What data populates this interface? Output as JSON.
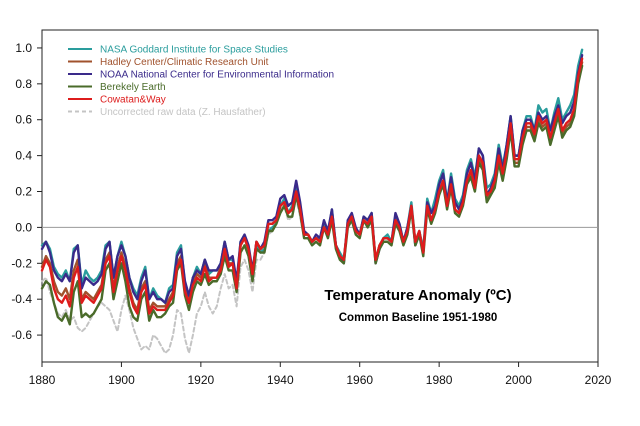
{
  "chart_data": {
    "type": "line",
    "title": "Temperature Anomaly (ºC)",
    "subtitle": "Common Baseline 1951-1980",
    "xlabel": "",
    "ylabel": "",
    "xlim": [
      1880,
      2020
    ],
    "ylim": [
      -0.75,
      1.1
    ],
    "x_ticks": [
      1880,
      1900,
      1920,
      1940,
      1960,
      1980,
      2000,
      2020
    ],
    "y_ticks": [
      -0.6,
      -0.4,
      -0.2,
      0.0,
      0.2,
      0.4,
      0.6,
      0.8,
      1.0
    ],
    "y_tick_labels": [
      "-0.6",
      "-0.4",
      "-0.2",
      "0.0",
      "0.2",
      "0.4",
      "0.6",
      "0.8",
      "1.0"
    ],
    "grid": false,
    "reference_line": 0.0,
    "legend_position": "top-left",
    "series": [
      {
        "name": "NASA Goddard Institute for Space Studies",
        "color": "#2a9d9d",
        "style": "solid",
        "start_year": 1880,
        "values": [
          -0.1,
          -0.08,
          -0.12,
          -0.22,
          -0.26,
          -0.28,
          -0.24,
          -0.3,
          -0.12,
          -0.1,
          -0.32,
          -0.24,
          -0.28,
          -0.3,
          -0.28,
          -0.24,
          -0.1,
          -0.08,
          -0.28,
          -0.16,
          -0.08,
          -0.16,
          -0.28,
          -0.34,
          -0.38,
          -0.28,
          -0.22,
          -0.4,
          -0.34,
          -0.38,
          -0.4,
          -0.42,
          -0.34,
          -0.32,
          -0.14,
          -0.1,
          -0.32,
          -0.4,
          -0.28,
          -0.22,
          -0.26,
          -0.18,
          -0.26,
          -0.24,
          -0.24,
          -0.2,
          -0.08,
          -0.18,
          -0.18,
          -0.32,
          -0.08,
          -0.06,
          -0.12,
          -0.26,
          -0.1,
          -0.14,
          -0.12,
          -0.02,
          0.0,
          0.02,
          0.12,
          0.16,
          0.08,
          0.12,
          0.24,
          0.12,
          -0.04,
          -0.04,
          -0.08,
          -0.06,
          -0.06,
          0.02,
          -0.04,
          0.1,
          -0.1,
          -0.14,
          -0.18,
          0.04,
          0.06,
          -0.02,
          -0.04,
          0.06,
          0.04,
          0.08,
          -0.18,
          -0.1,
          -0.06,
          -0.04,
          -0.08,
          0.06,
          0.02,
          -0.08,
          0.0,
          0.14,
          -0.08,
          -0.02,
          -0.12,
          0.16,
          0.08,
          0.16,
          0.26,
          0.32,
          0.14,
          0.3,
          0.16,
          0.12,
          0.18,
          0.32,
          0.38,
          0.28,
          0.44,
          0.4,
          0.22,
          0.24,
          0.3,
          0.46,
          0.34,
          0.46,
          0.62,
          0.4,
          0.4,
          0.54,
          0.62,
          0.62,
          0.54,
          0.68,
          0.64,
          0.66,
          0.54,
          0.64,
          0.72,
          0.6,
          0.64,
          0.68,
          0.74,
          0.9,
          0.99
        ]
      },
      {
        "name": "Hadley Center/Climatic Research Unit",
        "color": "#a0522d",
        "style": "solid",
        "start_year": 1880,
        "values": [
          -0.22,
          -0.16,
          -0.2,
          -0.3,
          -0.36,
          -0.38,
          -0.34,
          -0.4,
          -0.24,
          -0.18,
          -0.4,
          -0.36,
          -0.38,
          -0.4,
          -0.36,
          -0.32,
          -0.18,
          -0.14,
          -0.34,
          -0.22,
          -0.14,
          -0.22,
          -0.34,
          -0.42,
          -0.46,
          -0.34,
          -0.3,
          -0.46,
          -0.42,
          -0.44,
          -0.44,
          -0.44,
          -0.4,
          -0.36,
          -0.2,
          -0.16,
          -0.34,
          -0.4,
          -0.3,
          -0.26,
          -0.28,
          -0.2,
          -0.28,
          -0.28,
          -0.28,
          -0.22,
          -0.1,
          -0.2,
          -0.2,
          -0.34,
          -0.1,
          -0.06,
          -0.12,
          -0.26,
          -0.08,
          -0.12,
          -0.1,
          0.02,
          0.02,
          0.04,
          0.12,
          0.14,
          0.08,
          0.1,
          0.2,
          0.1,
          -0.04,
          -0.04,
          -0.08,
          -0.06,
          -0.08,
          0.0,
          -0.04,
          0.06,
          -0.1,
          -0.16,
          -0.18,
          0.02,
          0.06,
          -0.02,
          -0.04,
          0.04,
          0.02,
          0.06,
          -0.18,
          -0.1,
          -0.06,
          -0.06,
          -0.08,
          0.04,
          0.0,
          -0.08,
          -0.02,
          0.12,
          -0.08,
          -0.02,
          -0.14,
          0.12,
          0.04,
          0.1,
          0.2,
          0.26,
          0.12,
          0.24,
          0.1,
          0.08,
          0.14,
          0.26,
          0.3,
          0.22,
          0.38,
          0.34,
          0.16,
          0.2,
          0.24,
          0.38,
          0.28,
          0.4,
          0.56,
          0.36,
          0.36,
          0.48,
          0.56,
          0.56,
          0.5,
          0.6,
          0.56,
          0.58,
          0.48,
          0.56,
          0.64,
          0.52,
          0.56,
          0.58,
          0.64,
          0.82,
          0.92
        ]
      },
      {
        "name": "NOAA National Center for Environmental Information",
        "color": "#3a2a8a",
        "style": "solid",
        "start_year": 1880,
        "values": [
          -0.12,
          -0.08,
          -0.14,
          -0.24,
          -0.28,
          -0.3,
          -0.26,
          -0.3,
          -0.14,
          -0.1,
          -0.34,
          -0.28,
          -0.3,
          -0.32,
          -0.3,
          -0.26,
          -0.12,
          -0.08,
          -0.28,
          -0.16,
          -0.1,
          -0.16,
          -0.28,
          -0.36,
          -0.4,
          -0.3,
          -0.24,
          -0.4,
          -0.36,
          -0.4,
          -0.4,
          -0.42,
          -0.36,
          -0.34,
          -0.16,
          -0.12,
          -0.3,
          -0.38,
          -0.28,
          -0.24,
          -0.26,
          -0.18,
          -0.24,
          -0.24,
          -0.24,
          -0.2,
          -0.08,
          -0.18,
          -0.16,
          -0.3,
          -0.08,
          -0.04,
          -0.1,
          -0.24,
          -0.08,
          -0.12,
          -0.08,
          0.04,
          0.04,
          0.06,
          0.16,
          0.18,
          0.12,
          0.14,
          0.26,
          0.14,
          -0.02,
          -0.04,
          -0.08,
          -0.04,
          -0.06,
          0.04,
          -0.02,
          0.1,
          -0.1,
          -0.16,
          -0.2,
          0.04,
          0.08,
          0.0,
          -0.04,
          0.06,
          0.04,
          0.08,
          -0.2,
          -0.12,
          -0.06,
          -0.06,
          -0.08,
          0.08,
          0.02,
          -0.08,
          0.0,
          0.12,
          -0.1,
          -0.04,
          -0.14,
          0.14,
          0.08,
          0.12,
          0.24,
          0.3,
          0.14,
          0.28,
          0.14,
          0.1,
          0.16,
          0.3,
          0.36,
          0.26,
          0.44,
          0.4,
          0.18,
          0.22,
          0.28,
          0.44,
          0.32,
          0.46,
          0.62,
          0.4,
          0.4,
          0.54,
          0.6,
          0.6,
          0.54,
          0.64,
          0.6,
          0.62,
          0.54,
          0.62,
          0.68,
          0.58,
          0.62,
          0.64,
          0.7,
          0.86,
          0.96
        ]
      },
      {
        "name": "Berekely Earth",
        "color": "#4a6b2a",
        "style": "solid",
        "start_year": 1880,
        "values": [
          -0.34,
          -0.3,
          -0.32,
          -0.42,
          -0.5,
          -0.52,
          -0.48,
          -0.54,
          -0.36,
          -0.3,
          -0.5,
          -0.48,
          -0.5,
          -0.48,
          -0.44,
          -0.4,
          -0.24,
          -0.2,
          -0.4,
          -0.3,
          -0.2,
          -0.3,
          -0.44,
          -0.5,
          -0.52,
          -0.4,
          -0.36,
          -0.52,
          -0.46,
          -0.5,
          -0.5,
          -0.48,
          -0.44,
          -0.42,
          -0.24,
          -0.2,
          -0.38,
          -0.46,
          -0.36,
          -0.3,
          -0.32,
          -0.26,
          -0.32,
          -0.3,
          -0.3,
          -0.26,
          -0.16,
          -0.24,
          -0.24,
          -0.36,
          -0.14,
          -0.1,
          -0.16,
          -0.3,
          -0.12,
          -0.14,
          -0.14,
          -0.02,
          -0.02,
          0.02,
          0.08,
          0.12,
          0.06,
          0.06,
          0.18,
          0.08,
          -0.06,
          -0.06,
          -0.1,
          -0.08,
          -0.1,
          0.0,
          -0.06,
          0.04,
          -0.12,
          -0.18,
          -0.2,
          0.0,
          0.04,
          -0.04,
          -0.06,
          0.04,
          0.0,
          0.04,
          -0.2,
          -0.12,
          -0.08,
          -0.08,
          -0.1,
          0.02,
          -0.02,
          -0.1,
          -0.04,
          0.1,
          -0.1,
          -0.04,
          -0.16,
          0.1,
          0.02,
          0.08,
          0.18,
          0.24,
          0.1,
          0.22,
          0.08,
          0.06,
          0.12,
          0.24,
          0.28,
          0.2,
          0.36,
          0.32,
          0.14,
          0.18,
          0.22,
          0.36,
          0.26,
          0.38,
          0.54,
          0.34,
          0.34,
          0.46,
          0.54,
          0.54,
          0.48,
          0.58,
          0.54,
          0.56,
          0.46,
          0.54,
          0.62,
          0.5,
          0.54,
          0.56,
          0.62,
          0.8,
          0.9
        ]
      },
      {
        "name": "Cowatan&Way",
        "color": "#dd1c1c",
        "style": "solid",
        "start_year": 1880,
        "values": [
          -0.24,
          -0.18,
          -0.22,
          -0.34,
          -0.4,
          -0.42,
          -0.38,
          -0.44,
          -0.28,
          -0.22,
          -0.42,
          -0.38,
          -0.4,
          -0.42,
          -0.38,
          -0.34,
          -0.2,
          -0.16,
          -0.36,
          -0.24,
          -0.16,
          -0.24,
          -0.36,
          -0.44,
          -0.48,
          -0.36,
          -0.32,
          -0.48,
          -0.44,
          -0.46,
          -0.46,
          -0.46,
          -0.42,
          -0.38,
          -0.22,
          -0.18,
          -0.36,
          -0.42,
          -0.32,
          -0.28,
          -0.3,
          -0.22,
          -0.3,
          -0.28,
          -0.28,
          -0.24,
          -0.12,
          -0.22,
          -0.2,
          -0.34,
          -0.1,
          -0.06,
          -0.12,
          -0.26,
          -0.08,
          -0.12,
          -0.1,
          0.02,
          0.02,
          0.04,
          0.12,
          0.14,
          0.08,
          0.1,
          0.2,
          0.1,
          -0.04,
          -0.04,
          -0.08,
          -0.06,
          -0.08,
          0.0,
          -0.04,
          0.06,
          -0.1,
          -0.16,
          -0.18,
          0.02,
          0.06,
          -0.02,
          -0.04,
          0.04,
          0.02,
          0.06,
          -0.18,
          -0.1,
          -0.06,
          -0.06,
          -0.08,
          0.04,
          0.0,
          -0.08,
          -0.02,
          0.12,
          -0.08,
          -0.02,
          -0.14,
          0.12,
          0.04,
          0.1,
          0.2,
          0.26,
          0.12,
          0.24,
          0.1,
          0.08,
          0.14,
          0.26,
          0.32,
          0.22,
          0.4,
          0.36,
          0.18,
          0.2,
          0.26,
          0.4,
          0.3,
          0.42,
          0.58,
          0.38,
          0.38,
          0.5,
          0.58,
          0.58,
          0.52,
          0.62,
          0.58,
          0.6,
          0.5,
          0.58,
          0.66,
          0.54,
          0.58,
          0.6,
          0.66,
          0.84,
          0.94
        ]
      },
      {
        "name": "Uncorrected raw data (Z. Hausfather)",
        "color": "#c4c4c4",
        "style": "dashed",
        "start_year": 1880,
        "values": [
          -0.3,
          -0.28,
          -0.36,
          -0.42,
          -0.48,
          -0.5,
          -0.46,
          -0.52,
          -0.5,
          -0.56,
          -0.58,
          -0.56,
          -0.52,
          -0.48,
          -0.44,
          -0.42,
          -0.44,
          -0.46,
          -0.52,
          -0.58,
          -0.46,
          -0.38,
          -0.46,
          -0.56,
          -0.62,
          -0.68,
          -0.66,
          -0.68,
          -0.6,
          -0.62,
          -0.66,
          -0.7,
          -0.68,
          -0.6,
          -0.46,
          -0.48,
          -0.62,
          -0.7,
          -0.6,
          -0.48,
          -0.44,
          -0.36,
          -0.44,
          -0.48,
          -0.44,
          -0.34,
          -0.26,
          -0.34,
          -0.32,
          -0.44,
          -0.22,
          -0.18,
          -0.24,
          -0.36,
          -0.18,
          -0.18,
          -0.14,
          -0.04,
          -0.02,
          0.02,
          0.1,
          0.12,
          0.04,
          0.06,
          0.16,
          0.06,
          -0.06,
          -0.06,
          -0.1,
          -0.08,
          -0.1,
          0.0,
          -0.06,
          0.04,
          -0.12,
          -0.18,
          -0.2,
          0.0,
          0.04,
          -0.04,
          -0.06,
          0.04,
          0.0,
          0.04,
          -0.2,
          -0.12,
          -0.08,
          -0.08,
          -0.1,
          0.02,
          -0.02,
          -0.1,
          -0.04,
          0.1,
          -0.1,
          -0.04,
          -0.16,
          0.1,
          0.02,
          0.08,
          0.18,
          0.24,
          0.1,
          0.22,
          0.08,
          0.06,
          0.12,
          0.24,
          0.28,
          0.2,
          0.36,
          0.32,
          0.14,
          0.18,
          0.22,
          0.36,
          0.26,
          0.38,
          0.54,
          0.34,
          0.34,
          0.46,
          0.54,
          0.54,
          0.48,
          0.58,
          0.54,
          0.56,
          0.46,
          0.54,
          0.62,
          0.5,
          0.54,
          0.56,
          0.62,
          0.8,
          0.9
        ]
      }
    ]
  }
}
